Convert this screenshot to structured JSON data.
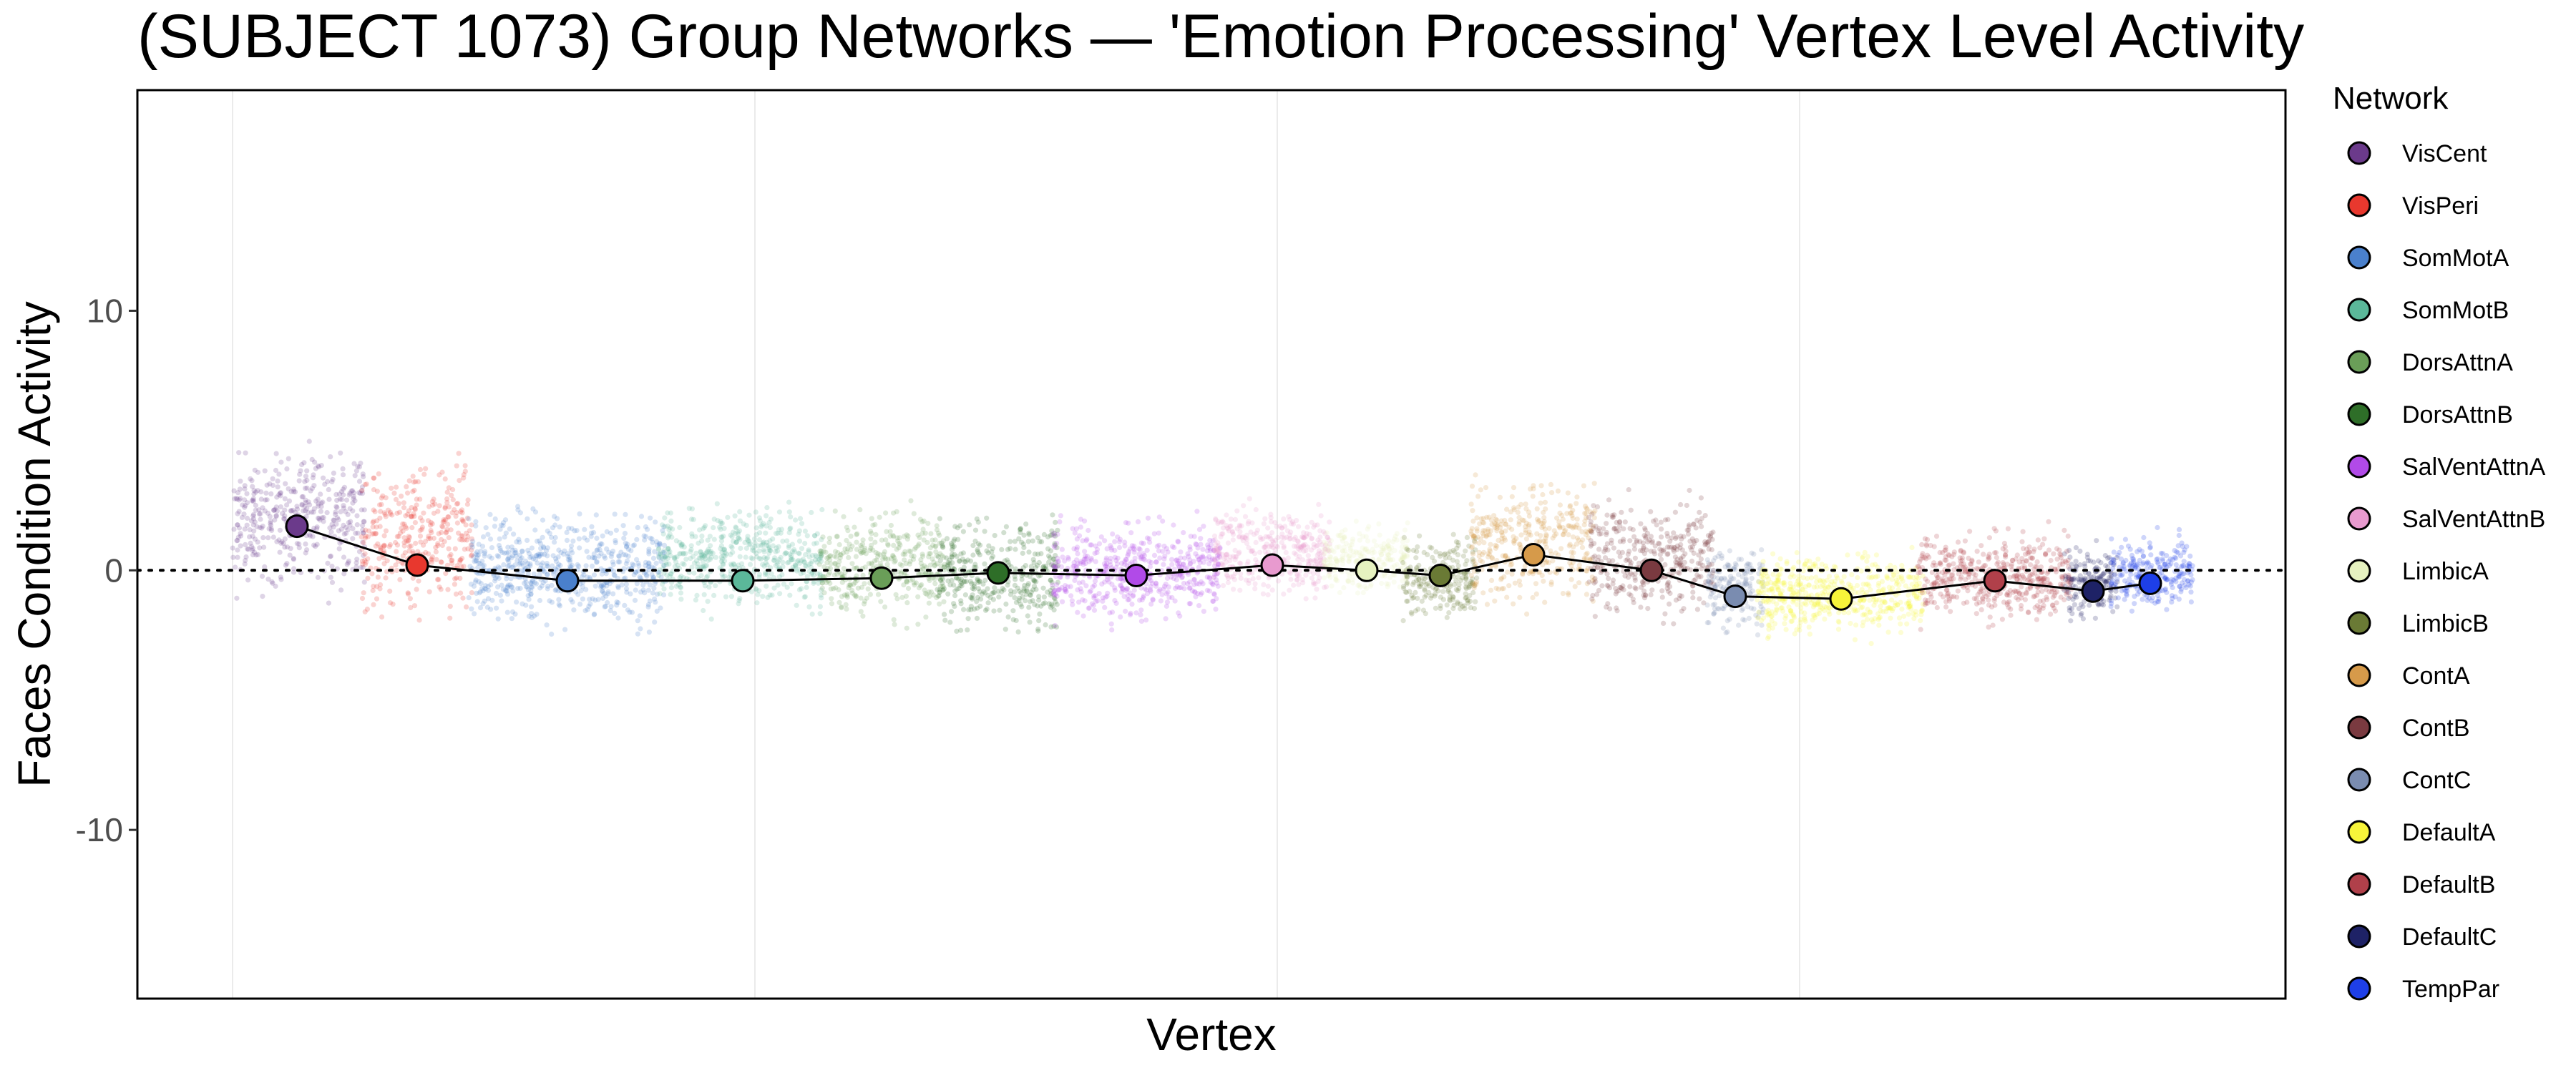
{
  "chart_data": {
    "type": "scatter",
    "title": "(SUBJECT 1073) Group Networks — 'Emotion Processing' Vertex Level Activity",
    "xlabel": "Vertex",
    "ylabel": "Faces Condition Activity",
    "ylim": [
      -16.5,
      18.5
    ],
    "yticks": [
      -10,
      0,
      10
    ],
    "ytick_labels": [
      "-10",
      "0",
      "10"
    ],
    "reference_line_y": 0,
    "grid": true,
    "legend": {
      "title": "Network",
      "placement": "right"
    },
    "networks": [
      {
        "name": "VisCent",
        "color": "#6B3A8B",
        "mean": 1.7,
        "range": [
          -1.5,
          5.5
        ]
      },
      {
        "name": "VisPeri",
        "color": "#E8382E",
        "mean": 0.2,
        "range": [
          -2.5,
          5.0
        ]
      },
      {
        "name": "SomMotA",
        "color": "#4A80CC",
        "mean": -0.4,
        "range": [
          -2.8,
          3.0
        ]
      },
      {
        "name": "SomMotB",
        "color": "#5BB89A",
        "mean": -0.4,
        "range": [
          -2.0,
          3.0
        ]
      },
      {
        "name": "DorsAttnA",
        "color": "#6A9E58",
        "mean": -0.3,
        "range": [
          -2.5,
          3.0
        ]
      },
      {
        "name": "DorsAttnB",
        "color": "#2E6E28",
        "mean": -0.1,
        "range": [
          -3.0,
          2.8
        ]
      },
      {
        "name": "SalVentAttnA",
        "color": "#B14AE8",
        "mean": -0.2,
        "range": [
          -2.5,
          2.5
        ]
      },
      {
        "name": "SalVentAttnB",
        "color": "#E89ACF",
        "mean": 0.2,
        "range": [
          -1.5,
          3.0
        ]
      },
      {
        "name": "LimbicA",
        "color": "#E6F2C0",
        "mean": 0.0,
        "range": [
          -1.3,
          2.2
        ]
      },
      {
        "name": "LimbicB",
        "color": "#6A7A35",
        "mean": -0.2,
        "range": [
          -2.5,
          2.0
        ]
      },
      {
        "name": "ContA",
        "color": "#D69A4A",
        "mean": 0.6,
        "range": [
          -2.0,
          4.0
        ]
      },
      {
        "name": "ContB",
        "color": "#7A3A40",
        "mean": 0.0,
        "range": [
          -2.5,
          3.5
        ]
      },
      {
        "name": "ContC",
        "color": "#7A8CB0",
        "mean": -1.0,
        "range": [
          -2.8,
          1.5
        ]
      },
      {
        "name": "DefaultA",
        "color": "#F7F43A",
        "mean": -1.1,
        "range": [
          -3.0,
          1.2
        ]
      },
      {
        "name": "DefaultB",
        "color": "#B0404A",
        "mean": -0.4,
        "range": [
          -2.5,
          2.0
        ]
      },
      {
        "name": "DefaultC",
        "color": "#1E2266",
        "mean": -0.8,
        "range": [
          -2.5,
          1.5
        ]
      },
      {
        "name": "TempPar",
        "color": "#1E3FE8",
        "mean": -0.5,
        "range": [
          -2.0,
          1.8
        ]
      }
    ]
  }
}
